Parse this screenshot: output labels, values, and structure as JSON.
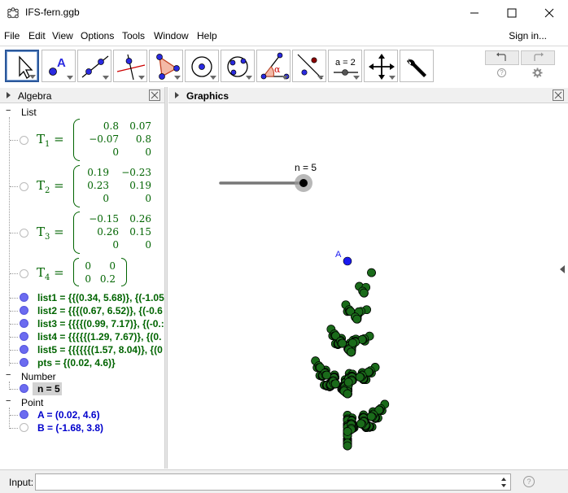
{
  "window": {
    "title": "IFS-fern.ggb"
  },
  "menu": {
    "items": [
      "File",
      "Edit",
      "View",
      "Options",
      "Tools",
      "Window",
      "Help"
    ],
    "sign_in": "Sign in..."
  },
  "toolbar": {
    "tools": [
      {
        "icon": "move-arrow-icon",
        "selected": true
      },
      {
        "icon": "point-icon",
        "selected": false
      },
      {
        "icon": "line-icon",
        "selected": false
      },
      {
        "icon": "perpendicular-line-icon",
        "selected": false
      },
      {
        "icon": "polygon-icon",
        "selected": false
      },
      {
        "icon": "circle-center-point-icon",
        "selected": false
      },
      {
        "icon": "circle-three-points-icon",
        "selected": false
      },
      {
        "icon": "angle-icon",
        "selected": false
      },
      {
        "icon": "reflect-about-line-icon",
        "selected": false
      },
      {
        "icon": "slider-icon",
        "selected": false
      },
      {
        "icon": "move-graphics-view-icon",
        "selected": false
      },
      {
        "icon": "settings-wrench-icon",
        "selected": false
      }
    ],
    "slider_tool_label": "a = 2",
    "point_tool_label": "A",
    "angle_tool_label": "α"
  },
  "algebra": {
    "header": "Algebra",
    "categories": {
      "list": "List",
      "number": "Number",
      "point": "Point"
    },
    "matrices": [
      {
        "name": "T",
        "sub": "1",
        "rows": [
          [
            "0.8",
            "0.07"
          ],
          [
            "−0.07",
            "0.8"
          ],
          [
            "0",
            "0"
          ]
        ]
      },
      {
        "name": "T",
        "sub": "2",
        "rows": [
          [
            "0.19",
            "−0.23"
          ],
          [
            "0.23",
            "0.19"
          ],
          [
            "0",
            "0"
          ]
        ]
      },
      {
        "name": "T",
        "sub": "3",
        "rows": [
          [
            "−0.15",
            "0.26"
          ],
          [
            "0.26",
            "0.15"
          ],
          [
            "0",
            "0"
          ]
        ]
      },
      {
        "name": "T",
        "sub": "4",
        "rows": [
          [
            "0",
            "0"
          ],
          [
            "0",
            "0.2"
          ]
        ]
      }
    ],
    "matrix_eq": "=",
    "lists": [
      "list1 = {{(0.34, 5.68)}, {(-1.05",
      "list2 = {{{(0.67, 6.52)}, {(-0.6",
      "list3 = {{{{(0.99, 7.17)}, {(-0.:",
      "list4 = {{{{{(1.29, 7.67)}, {(0.",
      "list5 = {{{{{{(1.57, 8.04)}, {(0",
      "pts = {(0.02, 4.6)}"
    ],
    "number_items": [
      "n = 5"
    ],
    "point_items": [
      "A = (0.02, 4.6)",
      "B = (-1.68, 3.8)"
    ]
  },
  "graphics": {
    "header": "Graphics",
    "slider_label": "n = 5",
    "slider_value": 5,
    "point_label": "A",
    "colors": {
      "fern": "#006400",
      "fern_fill": "#1a6b1a",
      "point": "#1a1af0"
    }
  },
  "input": {
    "label": "Input:",
    "value": "",
    "help": "?"
  }
}
